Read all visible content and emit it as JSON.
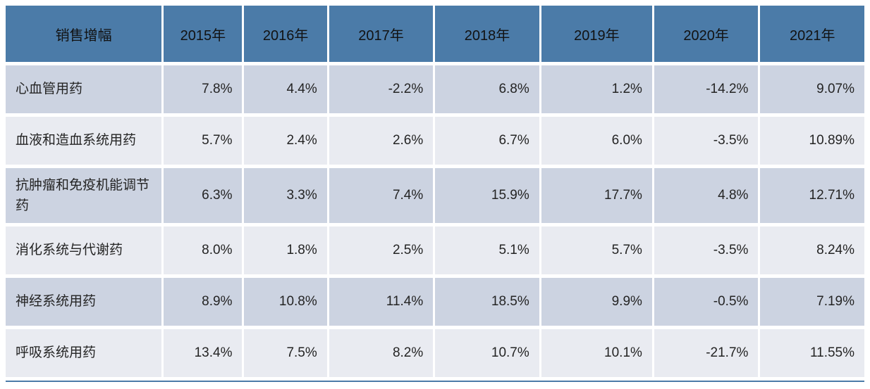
{
  "table": {
    "header": [
      "销售增幅",
      "2015年",
      "2016年",
      "2017年",
      "2018年",
      "2019年",
      "2020年",
      "2021年"
    ],
    "rows": [
      {
        "label": "心血管用药",
        "values": [
          "7.8%",
          "4.4%",
          "-2.2%",
          "6.8%",
          "1.2%",
          "-14.2%",
          "9.07%"
        ]
      },
      {
        "label": "血液和造血系统用药",
        "values": [
          "5.7%",
          "2.4%",
          "2.6%",
          "6.7%",
          "6.0%",
          "-3.5%",
          "10.89%"
        ]
      },
      {
        "label": "抗肿瘤和免疫机能调节药",
        "values": [
          "6.3%",
          "3.3%",
          "7.4%",
          "15.9%",
          "17.7%",
          "4.8%",
          "12.71%"
        ]
      },
      {
        "label": "消化系统与代谢药",
        "values": [
          "8.0%",
          "1.8%",
          "2.5%",
          "5.1%",
          "5.7%",
          "-3.5%",
          "8.24%"
        ]
      },
      {
        "label": "神经系统用药",
        "values": [
          "8.9%",
          "10.8%",
          "11.4%",
          "18.5%",
          "9.9%",
          "-0.5%",
          "7.19%"
        ]
      },
      {
        "label": "呼吸系统用药",
        "values": [
          "13.4%",
          "7.5%",
          "8.2%",
          "10.7%",
          "10.1%",
          "-21.7%",
          "11.55%"
        ]
      }
    ]
  },
  "colors": {
    "header_bg": "#4b7ba8",
    "row_dark_bg": "#ccd3e1",
    "row_light_bg": "#e9ebf1",
    "header_text": "#121212",
    "cell_text": "#242424",
    "separator": "#ffffff"
  },
  "chart_data": {
    "type": "table",
    "title": "销售增幅",
    "categories": [
      "2015年",
      "2016年",
      "2017年",
      "2018年",
      "2019年",
      "2020年",
      "2021年"
    ],
    "series": [
      {
        "name": "心血管用药",
        "values": [
          7.8,
          4.4,
          -2.2,
          6.8,
          1.2,
          -14.2,
          9.07
        ]
      },
      {
        "name": "血液和造血系统用药",
        "values": [
          5.7,
          2.4,
          2.6,
          6.7,
          6.0,
          -3.5,
          10.89
        ]
      },
      {
        "name": "抗肿瘤和免疫机能调节药",
        "values": [
          6.3,
          3.3,
          7.4,
          15.9,
          17.7,
          4.8,
          12.71
        ]
      },
      {
        "name": "消化系统与代谢药",
        "values": [
          8.0,
          1.8,
          2.5,
          5.1,
          5.7,
          -3.5,
          8.24
        ]
      },
      {
        "name": "神经系统用药",
        "values": [
          8.9,
          10.8,
          11.4,
          18.5,
          9.9,
          -0.5,
          7.19
        ]
      },
      {
        "name": "呼吸系统用药",
        "values": [
          13.4,
          7.5,
          8.2,
          10.7,
          10.1,
          -21.7,
          11.55
        ]
      }
    ],
    "unit": "percent"
  }
}
